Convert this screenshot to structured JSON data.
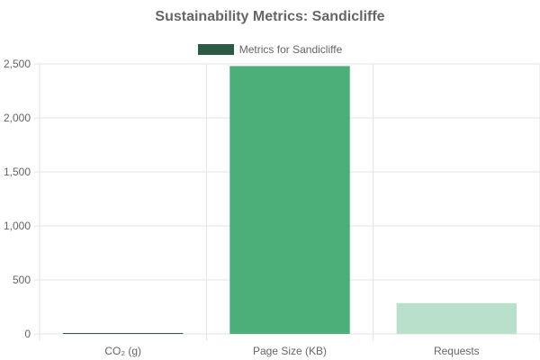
{
  "chart_data": {
    "type": "bar",
    "title": "Sustainability Metrics: Sandicliffe",
    "categories": [
      "CO₂ (g)",
      "Page Size (KB)",
      "Requests"
    ],
    "series": [
      {
        "name": "Metrics for Sandicliffe",
        "values": [
          3,
          2480,
          285
        ],
        "colors": [
          "#2d5a44",
          "#4caf7a",
          "#b9e0ca"
        ]
      }
    ],
    "xlabel": "",
    "ylabel": "",
    "ylim": [
      0,
      2500
    ],
    "yticks": [
      0,
      500,
      1000,
      1500,
      2000,
      2500
    ],
    "ytick_labels": [
      "0",
      "500",
      "1,000",
      "1,500",
      "2,000",
      "2,500"
    ],
    "grid": true,
    "legend_position": "top",
    "legend_color": "#2d5a44"
  }
}
